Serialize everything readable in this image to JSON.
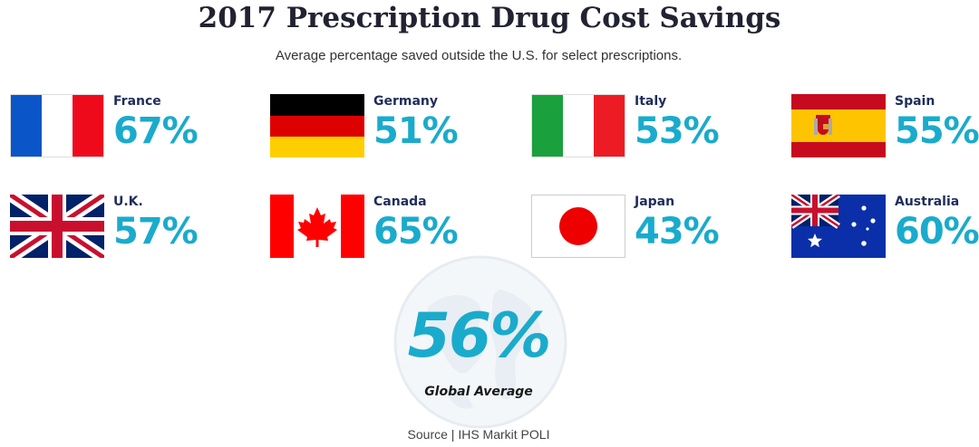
{
  "title": "2017 Prescription Drug Cost Savings",
  "subtitle": "Average percentage saved outside the U.S. for select prescriptions.",
  "chart_data": {
    "type": "table",
    "title": "2017 Prescription Drug Cost Savings",
    "subtitle": "Average percentage saved outside the U.S. for select prescriptions.",
    "categories": [
      "France",
      "Germany",
      "Italy",
      "Spain",
      "U.K.",
      "Canada",
      "Japan",
      "Australia"
    ],
    "values": [
      67,
      51,
      53,
      55,
      57,
      65,
      43,
      60
    ],
    "unit": "%",
    "global_average": 56,
    "global_average_label": "Global Average"
  },
  "countries": [
    {
      "name": "France",
      "display": "67%",
      "flag": "france-flag-icon"
    },
    {
      "name": "Germany",
      "display": "51%",
      "flag": "germany-flag-icon"
    },
    {
      "name": "Italy",
      "display": "53%",
      "flag": "italy-flag-icon"
    },
    {
      "name": "Spain",
      "display": "55%",
      "flag": "spain-flag-icon"
    },
    {
      "name": "U.K.",
      "display": "57%",
      "flag": "uk-flag-icon"
    },
    {
      "name": "Canada",
      "display": "65%",
      "flag": "canada-flag-icon"
    },
    {
      "name": "Japan",
      "display": "43%",
      "flag": "japan-flag-icon"
    },
    {
      "name": "Australia",
      "display": "60%",
      "flag": "australia-flag-icon"
    }
  ],
  "global": {
    "value": "56%",
    "label": "Global Average"
  },
  "source": "Source | IHS Markit POLI",
  "colors": {
    "accent": "#1aabcc",
    "country_label": "#1f2d5a",
    "title": "#222232"
  }
}
